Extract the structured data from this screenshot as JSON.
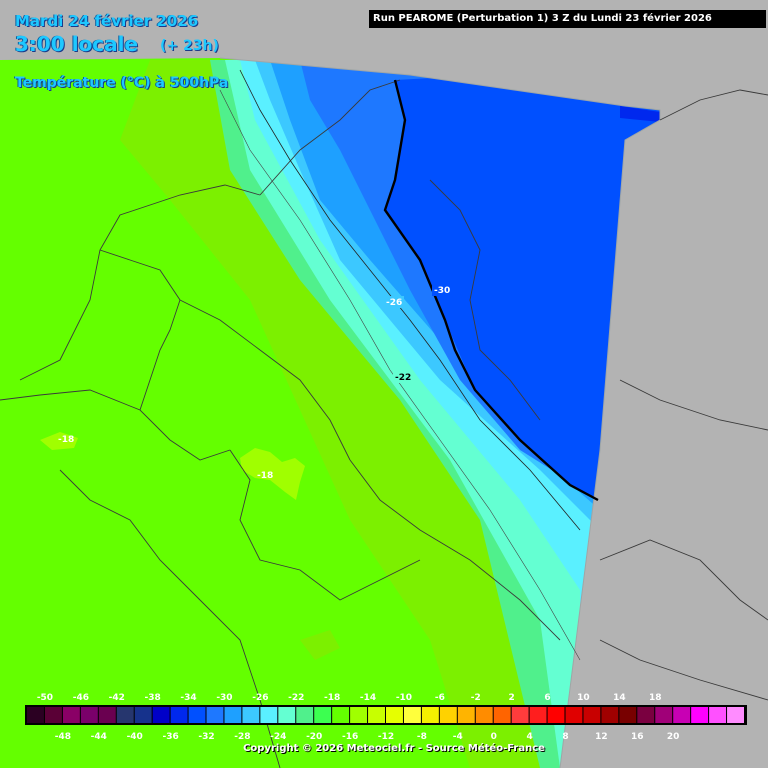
{
  "header": {
    "date": "Mardi 24 février 2026",
    "time": "3:00 locale",
    "lead": "(+ 23h)",
    "parameter": "Température (°C) à 500hPa",
    "run": "Run PEAROME (Perturbation 1) 3 Z du Lundi 23 février 2026"
  },
  "map_labels": [
    "-30",
    "-26",
    "-22",
    "-18",
    "-18"
  ],
  "legend": {
    "top_labels": [
      "-50",
      "-46",
      "-42",
      "-38",
      "-34",
      "-30",
      "-26",
      "-22",
      "-18",
      "-14",
      "-10",
      "-6",
      "-2",
      "2",
      "6",
      "10",
      "14",
      "18"
    ],
    "bottom_labels": [
      "-48",
      "-44",
      "-40",
      "-36",
      "-32",
      "-28",
      "-24",
      "-20",
      "-16",
      "-12",
      "-8",
      "-4",
      "0",
      "4",
      "8",
      "12",
      "16",
      "20"
    ],
    "colors": [
      "#2b0022",
      "#5a0036",
      "#8a0066",
      "#7a006a",
      "#6a0050",
      "#26366e",
      "#16328c",
      "#0000c8",
      "#0028ee",
      "#0050ff",
      "#1e78ff",
      "#1ea0ff",
      "#3cc8ff",
      "#5af0ff",
      "#64ffd2",
      "#50f08c",
      "#3cff50",
      "#64ff00",
      "#a0ff00",
      "#c8ff00",
      "#e6ff00",
      "#ffff3c",
      "#f5f000",
      "#ffd200",
      "#ffb400",
      "#ff8c00",
      "#ff6400",
      "#ff3c3c",
      "#ff1e1e",
      "#ff0000",
      "#e00000",
      "#c80000",
      "#a00000",
      "#780000",
      "#7a0040",
      "#a00078",
      "#c800b4",
      "#ff00ff",
      "#ff50ff",
      "#ff8cff"
    ]
  },
  "copyright": "Copyright © 2026 Meteociel.fr - Source Météo-France"
}
